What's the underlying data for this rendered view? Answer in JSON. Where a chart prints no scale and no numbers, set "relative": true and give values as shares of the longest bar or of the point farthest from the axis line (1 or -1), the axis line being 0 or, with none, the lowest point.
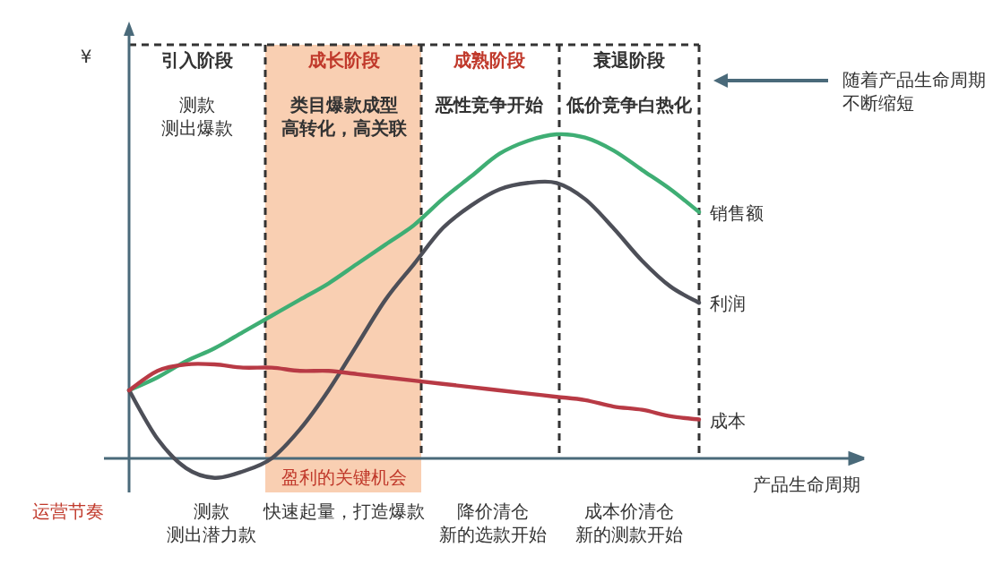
{
  "chart_data": {
    "type": "line",
    "relative": true,
    "xlabel": "产品生命周期",
    "ylabel": "¥",
    "categories": [
      null,
      null,
      null,
      null,
      null,
      null,
      null,
      null,
      null,
      null,
      null,
      null,
      null,
      null,
      null,
      null,
      null,
      null,
      null,
      null,
      null
    ],
    "series": [
      {
        "name": "销售额",
        "color": "#3fae74",
        "values": [
          0.21,
          0.25,
          0.3,
          0.34,
          0.39,
          0.44,
          0.49,
          0.54,
          0.6,
          0.66,
          0.72,
          0.8,
          0.87,
          0.94,
          0.98,
          1.0,
          0.99,
          0.95,
          0.89,
          0.83,
          0.76
        ]
      },
      {
        "name": "利润",
        "color": "#4d4f58",
        "values": [
          0.21,
          0.06,
          -0.03,
          -0.06,
          -0.04,
          0,
          0.09,
          0.21,
          0.35,
          0.49,
          0.6,
          0.71,
          0.78,
          0.83,
          0.85,
          0.85,
          0.8,
          0.71,
          0.61,
          0.53,
          0.48
        ]
      },
      {
        "name": "成本",
        "color": "#b83a45",
        "values": [
          0.21,
          0.27,
          0.29,
          0.29,
          0.28,
          0.28,
          0.27,
          0.27,
          0.26,
          0.25,
          0.24,
          0.23,
          0.22,
          0.21,
          0.2,
          0.19,
          0.18,
          0.16,
          0.15,
          0.13,
          0.12
        ]
      }
    ],
    "annotations": [
      "测款测出爆款",
      "类目爆款成型高转化，高关联",
      "恶性竞争开始",
      "低价竞争白热化",
      "随着产品生命周期不断缩短",
      "盈利的关键机会",
      "运营节奏",
      "测款测出潜力款",
      "快速起量，打造爆款",
      "降价清仓新的选款开始",
      "成本价清仓新的测款开始",
      "引入阶段",
      "成长阶段",
      "成熟阶段",
      "衰退阶段"
    ]
  }
}
